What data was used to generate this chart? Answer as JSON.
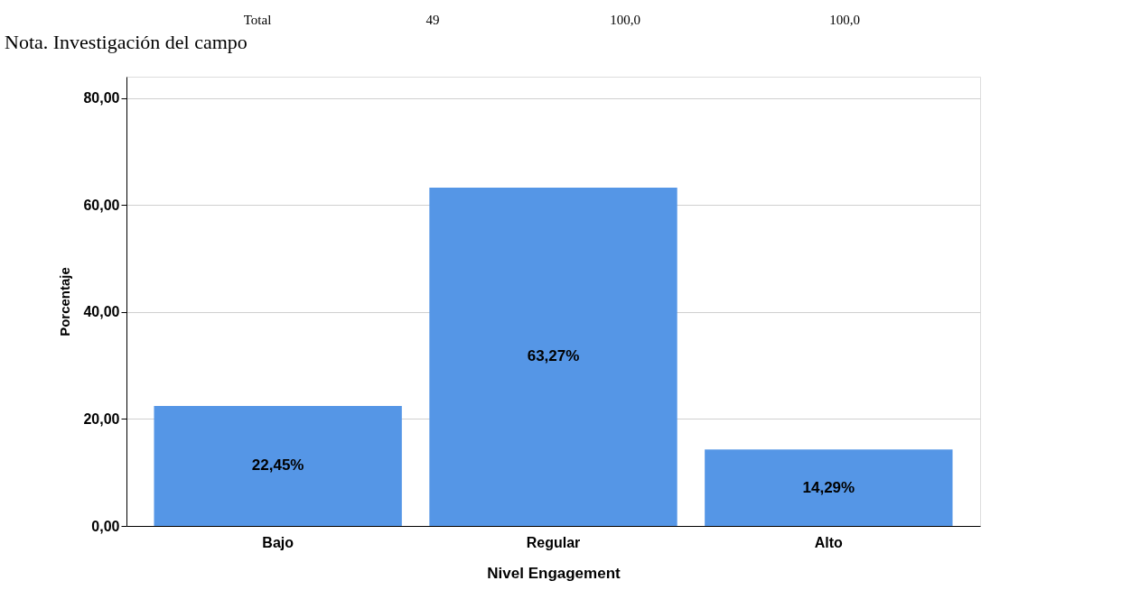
{
  "chart_data": {
    "type": "bar",
    "xlabel": "Nivel Engagement",
    "ylabel": "Porcentaje",
    "categories": [
      "Bajo",
      "Regular",
      "Alto"
    ],
    "values": [
      22.45,
      63.27,
      14.29
    ],
    "value_labels": [
      "22,45%",
      "63,27%",
      "14,29%"
    ],
    "color": "#5596e6",
    "ylim": [
      0,
      84
    ],
    "yticks": [
      {
        "value": 0,
        "label": "0,00"
      },
      {
        "value": 20,
        "label": "20,00"
      },
      {
        "value": 40,
        "label": "40,00"
      },
      {
        "value": 60,
        "label": "60,00"
      },
      {
        "value": 80,
        "label": "80,00"
      }
    ],
    "grid": "y",
    "annotations": [
      "Total",
      "49",
      "100,0",
      "100,0",
      "Nota. Investigación del campo"
    ]
  }
}
